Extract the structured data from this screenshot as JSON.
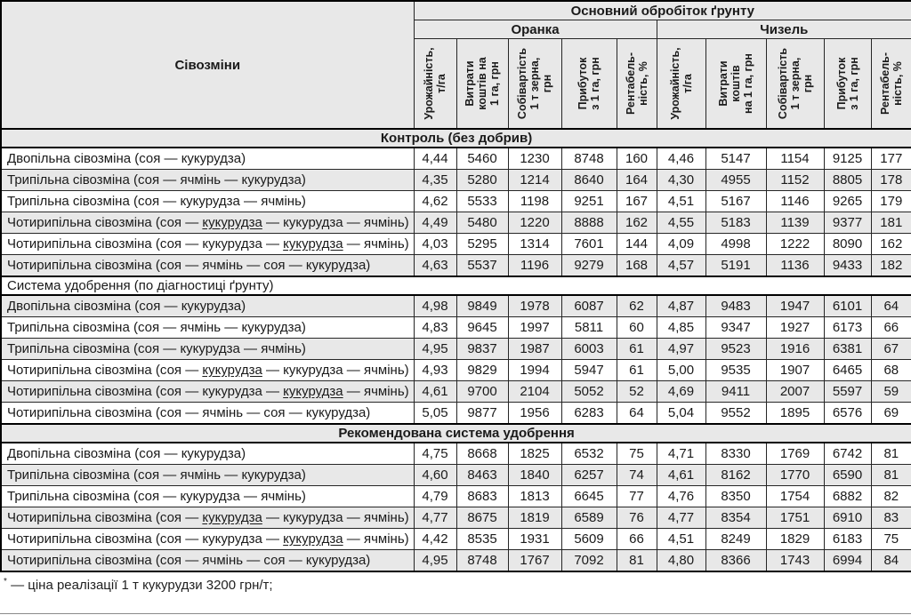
{
  "table_title_col": "Сівозміни",
  "header": {
    "main": "Основний обробіток ґрунту",
    "groups": [
      {
        "label": "Оранка",
        "metrics": [
          [
            "Урожайність,",
            "т/га"
          ],
          [
            "Витрати",
            "коштів на",
            "1 га, грн"
          ],
          [
            "Собівартість",
            "1 т зерна,",
            "грн"
          ],
          [
            "Прибуток",
            "з 1 га, грн"
          ],
          [
            "Рентабель-",
            "ність, %"
          ]
        ]
      },
      {
        "label": "Чизель",
        "metrics": [
          [
            "Урожайність,",
            "т/га"
          ],
          [
            "Витрати",
            "коштів",
            "на 1 га, грн"
          ],
          [
            "Собівартість",
            "1 т зерна,",
            "грн"
          ],
          [
            "Прибуток",
            "з 1 га, грн"
          ],
          [
            "Рентабель-",
            "ність, %"
          ]
        ]
      }
    ]
  },
  "sections": [
    {
      "title": "Контроль (без добрив)",
      "title_align": "center",
      "title_bold": true,
      "rows": [
        {
          "label": [
            {
              "t": "Двопільна сівозміна (соя — кукурудза)"
            }
          ],
          "oranka": [
            "4,44",
            "5460",
            "1230",
            "8748",
            "160"
          ],
          "chyzel": [
            "4,46",
            "5147",
            "1154",
            "9125",
            "177"
          ]
        },
        {
          "label": [
            {
              "t": "Трипільна сівозміна (соя — ячмінь — кукурудза)"
            }
          ],
          "oranka": [
            "4,35",
            "5280",
            "1214",
            "8640",
            "164"
          ],
          "chyzel": [
            "4,30",
            "4955",
            "1152",
            "8805",
            "178"
          ]
        },
        {
          "label": [
            {
              "t": "Трипільна сівозміна (соя — кукурудза — ячмінь)"
            }
          ],
          "oranka": [
            "4,62",
            "5533",
            "1198",
            "9251",
            "167"
          ],
          "chyzel": [
            "4,51",
            "5167",
            "1146",
            "9265",
            "179"
          ]
        },
        {
          "label": [
            {
              "t": "Чотирипільна сівозміна (соя — "
            },
            {
              "t": "кукурудза",
              "u": true
            },
            {
              "t": " — кукурудза — ячмінь)"
            }
          ],
          "oranka": [
            "4,49",
            "5480",
            "1220",
            "8888",
            "162"
          ],
          "chyzel": [
            "4,55",
            "5183",
            "1139",
            "9377",
            "181"
          ]
        },
        {
          "label": [
            {
              "t": "Чотирипільна сівозміна (соя — кукурудза — "
            },
            {
              "t": "кукурудза",
              "u": true
            },
            {
              "t": " — ячмінь)"
            }
          ],
          "oranka": [
            "4,03",
            "5295",
            "1314",
            "7601",
            "144"
          ],
          "chyzel": [
            "4,09",
            "4998",
            "1222",
            "8090",
            "162"
          ]
        },
        {
          "label": [
            {
              "t": "Чотирипільна сівозміна (соя — ячмінь — соя — кукурудза)"
            }
          ],
          "oranka": [
            "4,63",
            "5537",
            "1196",
            "9279",
            "168"
          ],
          "chyzel": [
            "4,57",
            "5191",
            "1136",
            "9433",
            "182"
          ]
        }
      ]
    },
    {
      "title": "Система удобрення (по діагностиці ґрунту)",
      "title_align": "left",
      "title_bold": false,
      "rows": [
        {
          "label": [
            {
              "t": "Двопільна сівозміна (соя — кукурудза)"
            }
          ],
          "oranka": [
            "4,98",
            "9849",
            "1978",
            "6087",
            "62"
          ],
          "chyzel": [
            "4,87",
            "9483",
            "1947",
            "6101",
            "64"
          ]
        },
        {
          "label": [
            {
              "t": "Трипільна сівозміна (соя — ячмінь — кукурудза)"
            }
          ],
          "oranka": [
            "4,83",
            "9645",
            "1997",
            "5811",
            "60"
          ],
          "chyzel": [
            "4,85",
            "9347",
            "1927",
            "6173",
            "66"
          ]
        },
        {
          "label": [
            {
              "t": "Трипільна сівозміна (соя — кукурудза — ячмінь)"
            }
          ],
          "oranka": [
            "4,95",
            "9837",
            "1987",
            "6003",
            "61"
          ],
          "chyzel": [
            "4,97",
            "9523",
            "1916",
            "6381",
            "67"
          ]
        },
        {
          "label": [
            {
              "t": "Чотирипільна сівозміна (соя — "
            },
            {
              "t": "кукурудза",
              "u": true
            },
            {
              "t": " — кукурудза — ячмінь)"
            }
          ],
          "oranka": [
            "4,93",
            "9829",
            "1994",
            "5947",
            "61"
          ],
          "chyzel": [
            "5,00",
            "9535",
            "1907",
            "6465",
            "68"
          ]
        },
        {
          "label": [
            {
              "t": "Чотирипільна сівозміна (соя — кукурудза — "
            },
            {
              "t": "кукурудза",
              "u": true
            },
            {
              "t": " — ячмінь)"
            }
          ],
          "oranka": [
            "4,61",
            "9700",
            "2104",
            "5052",
            "52"
          ],
          "chyzel": [
            "4,69",
            "9411",
            "2007",
            "5597",
            "59"
          ]
        },
        {
          "label": [
            {
              "t": "Чотирипільна сівозміна (соя — ячмінь — соя — кукурудза)"
            }
          ],
          "oranka": [
            "5,05",
            "9877",
            "1956",
            "6283",
            "64"
          ],
          "chyzel": [
            "5,04",
            "9552",
            "1895",
            "6576",
            "69"
          ]
        }
      ]
    },
    {
      "title": "Рекомендована система удобрення",
      "title_align": "center",
      "title_bold": true,
      "rows": [
        {
          "label": [
            {
              "t": "Двопільна сівозміна (соя — кукурудза)"
            }
          ],
          "oranka": [
            "4,75",
            "8668",
            "1825",
            "6532",
            "75"
          ],
          "chyzel": [
            "4,71",
            "8330",
            "1769",
            "6742",
            "81"
          ]
        },
        {
          "label": [
            {
              "t": "Трипільна сівозміна (соя — ячмінь — кукурудза)"
            }
          ],
          "oranka": [
            "4,60",
            "8463",
            "1840",
            "6257",
            "74"
          ],
          "chyzel": [
            "4,61",
            "8162",
            "1770",
            "6590",
            "81"
          ]
        },
        {
          "label": [
            {
              "t": "Трипільна сівозміна (соя — кукурудза — ячмінь)"
            }
          ],
          "oranka": [
            "4,79",
            "8683",
            "1813",
            "6645",
            "77"
          ],
          "chyzel": [
            "4,76",
            "8350",
            "1754",
            "6882",
            "82"
          ]
        },
        {
          "label": [
            {
              "t": "Чотирипільна сівозміна (соя — "
            },
            {
              "t": "кукурудза",
              "u": true
            },
            {
              "t": " — кукурудза — ячмінь)"
            }
          ],
          "oranka": [
            "4,77",
            "8675",
            "1819",
            "6589",
            "76"
          ],
          "chyzel": [
            "4,77",
            "8354",
            "1751",
            "6910",
            "83"
          ]
        },
        {
          "label": [
            {
              "t": "Чотирипільна сівозміна (соя — кукурудза — "
            },
            {
              "t": "кукурудза",
              "u": true
            },
            {
              "t": " — ячмінь)"
            }
          ],
          "oranka": [
            "4,42",
            "8535",
            "1931",
            "5609",
            "66"
          ],
          "chyzel": [
            "4,51",
            "8249",
            "1829",
            "6183",
            "75"
          ]
        },
        {
          "label": [
            {
              "t": "Чотирипільна сівозміна (соя — ячмінь — соя — кукурудза)"
            }
          ],
          "oranka": [
            "4,95",
            "8748",
            "1767",
            "7092",
            "81"
          ],
          "chyzel": [
            "4,80",
            "8366",
            "1743",
            "6994",
            "84"
          ]
        }
      ]
    }
  ],
  "footnote": {
    "marker": "*",
    "text": " — ціна реалізації 1 т кукурудзи 3200 грн/т;"
  }
}
